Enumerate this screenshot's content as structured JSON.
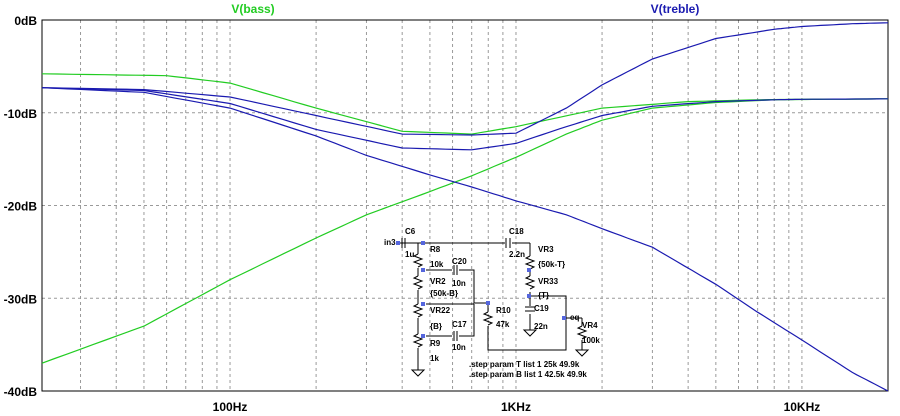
{
  "chart_data": {
    "type": "line",
    "x_scale": "log",
    "xlim": [
      22,
      20000
    ],
    "ylim": [
      -40,
      0
    ],
    "grid": true,
    "y_ticks": [
      {
        "value": 0,
        "label": "0dB"
      },
      {
        "value": -10,
        "label": "-10dB"
      },
      {
        "value": -20,
        "label": "-20dB"
      },
      {
        "value": -30,
        "label": "-30dB"
      },
      {
        "value": -40,
        "label": "-40dB"
      }
    ],
    "x_ticks": [
      {
        "value": 100,
        "label": "100Hz"
      },
      {
        "value": 1000,
        "label": "1KHz"
      },
      {
        "value": 10000,
        "label": "10KHz"
      }
    ],
    "series": [
      {
        "name": "V(bass)",
        "color": "#22cc22",
        "curves": [
          {
            "x": [
              22,
              60,
              100,
              200,
              400,
              700,
              1000,
              2000,
              4000,
              7000,
              10000,
              20000
            ],
            "y": [
              -5.8,
              -6.0,
              -6.8,
              -9.5,
              -12.0,
              -12.3,
              -11.5,
              -9.5,
              -8.8,
              -8.6,
              -8.55,
              -8.5
            ]
          },
          {
            "x": [
              22,
              50,
              100,
              200,
              300,
              500,
              700,
              1000,
              1500,
              2000,
              3000,
              5000,
              8000,
              12000,
              20000
            ],
            "y": [
              -37.0,
              -33.0,
              -28.0,
              -23.5,
              -21.0,
              -18.5,
              -16.8,
              -14.8,
              -12.3,
              -10.8,
              -9.5,
              -8.9,
              -8.6,
              -8.55,
              -8.5
            ]
          }
        ]
      },
      {
        "name": "V(treble)",
        "color": "#1a1ab0",
        "curves": [
          {
            "x": [
              22,
              50,
              100,
              200,
              400,
              700,
              1000,
              1500,
              2000,
              3000,
              5000,
              8000,
              10000,
              15000,
              20000
            ],
            "y": [
              -7.3,
              -7.5,
              -8.3,
              -10.3,
              -12.3,
              -12.4,
              -12.2,
              -9.5,
              -7.0,
              -4.2,
              -2.0,
              -1.0,
              -0.7,
              -0.4,
              -0.3
            ]
          },
          {
            "x": [
              22,
              50,
              100,
              200,
              400,
              700,
              1000,
              1500,
              2000,
              3000,
              5000,
              8000,
              10000,
              20000
            ],
            "y": [
              -7.3,
              -7.6,
              -9.0,
              -11.8,
              -13.8,
              -14.0,
              -13.3,
              -11.5,
              -10.3,
              -9.3,
              -8.8,
              -8.6,
              -8.55,
              -8.5
            ]
          },
          {
            "x": [
              22,
              50,
              100,
              200,
              300,
              500,
              700,
              1000,
              1500,
              2000,
              3000,
              5000,
              7000,
              10000,
              15000,
              20000
            ],
            "y": [
              -7.3,
              -7.8,
              -9.5,
              -12.5,
              -14.6,
              -16.7,
              -18.0,
              -19.5,
              -21.0,
              -22.5,
              -24.5,
              -28.5,
              -31.5,
              -34.5,
              -38.0,
              -40.0
            ]
          }
        ]
      }
    ]
  },
  "schematic": {
    "labels": {
      "in": "in3",
      "c6": "C6",
      "c6_val": "1u",
      "r8": "R8",
      "r8_val": "10k",
      "c18": "C18",
      "c18_val": "2.2n",
      "vr3": "VR3",
      "vr3_val": "{50k-T}",
      "c20": "C20",
      "c20_val": "10n",
      "vr2": "VR2",
      "vr2_val": "{50k-B}",
      "vr33": "VR33",
      "vr33_val": "{T}",
      "c19": "C19",
      "c19_val": "22n",
      "vr22": "VR22",
      "vr22_val": "{B}",
      "r10": "R10",
      "r10_val": "47k",
      "c17": "C17",
      "c17_val": "10n",
      "r9": "R9",
      "r9_val": "1k",
      "eq": "eq",
      "vr4": "VR4",
      "vr4_val": "100k"
    },
    "directive_t": ".step param T list 1 25k 49.9k",
    "directive_b": ".step param B list 1 42.5k 49.9k"
  }
}
